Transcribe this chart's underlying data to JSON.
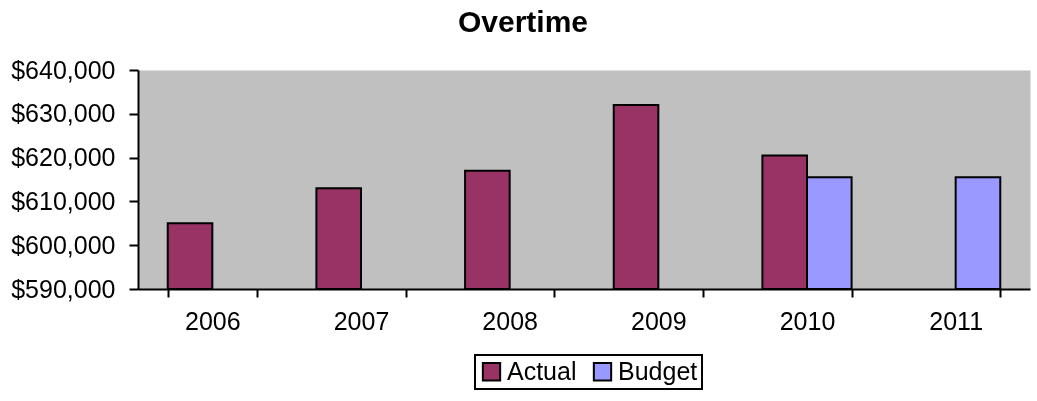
{
  "chart_data": {
    "type": "bar",
    "title": "Overtime",
    "categories": [
      "2006",
      "2007",
      "2008",
      "2009",
      "2010",
      "2011"
    ],
    "series": [
      {
        "name": "Actual",
        "color": "#993366",
        "values": [
          605000,
          613000,
          617000,
          632000,
          620500,
          null
        ]
      },
      {
        "name": "Budget",
        "color": "#9999ff",
        "values": [
          null,
          null,
          null,
          null,
          615500,
          615500
        ]
      }
    ],
    "ylim": [
      590000,
      640000
    ],
    "yticks": [
      {
        "value": 590000,
        "label": "$590,000"
      },
      {
        "value": 600000,
        "label": "$600,000"
      },
      {
        "value": 610000,
        "label": "$610,000"
      },
      {
        "value": 620000,
        "label": "$620,000"
      },
      {
        "value": 630000,
        "label": "$630,000"
      },
      {
        "value": 640000,
        "label": "$640,000"
      }
    ],
    "legend": "bottom"
  }
}
